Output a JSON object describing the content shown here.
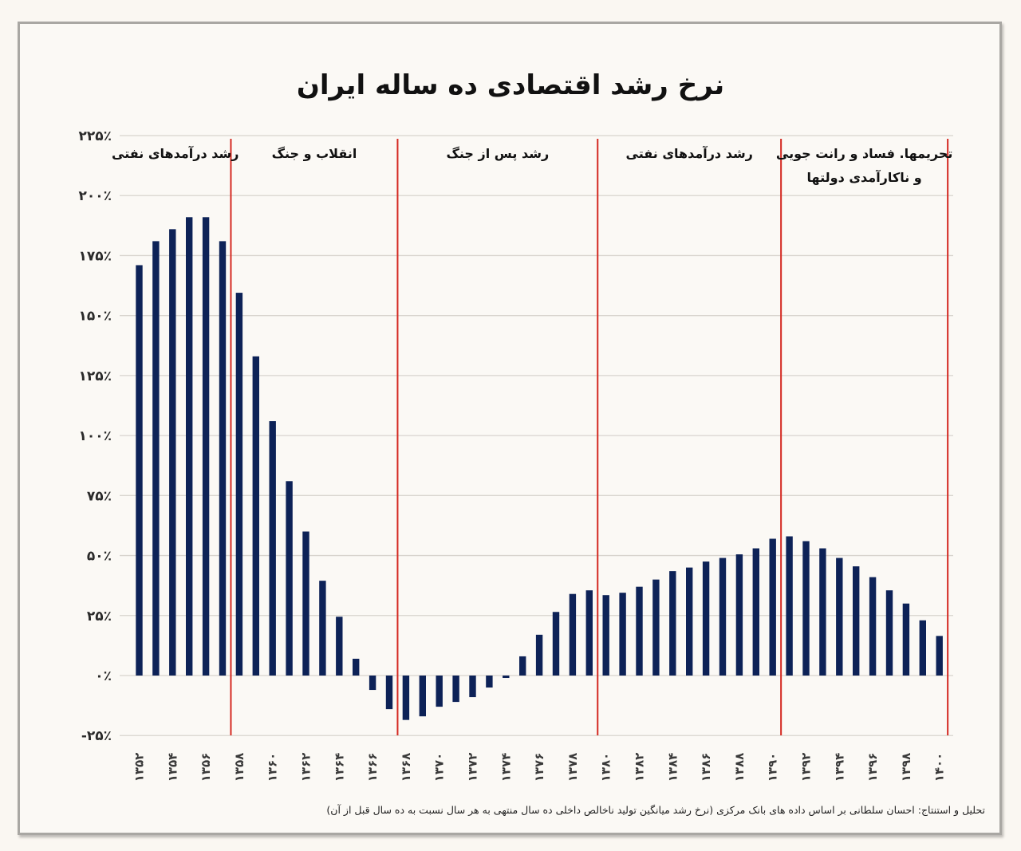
{
  "chart_data": {
    "type": "bar",
    "title": "نرخ رشد اقتصادی ده ساله ایران",
    "xlabel": "",
    "ylabel": "",
    "ylim": [
      -25,
      225
    ],
    "grid": true,
    "legend": "none",
    "colors": {
      "bar": "#0d2257",
      "divider": "#d42a22",
      "grid": "#d8d4ce"
    },
    "x": [
      1352,
      1353,
      1354,
      1355,
      1356,
      1357,
      1358,
      1359,
      1360,
      1361,
      1362,
      1363,
      1364,
      1365,
      1366,
      1367,
      1368,
      1369,
      1370,
      1371,
      1372,
      1373,
      1374,
      1375,
      1376,
      1377,
      1378,
      1379,
      1380,
      1381,
      1382,
      1383,
      1384,
      1385,
      1386,
      1387,
      1388,
      1389,
      1390,
      1391,
      1392,
      1393,
      1394,
      1395,
      1396,
      1397,
      1398,
      1399,
      1400
    ],
    "values": [
      171,
      181,
      186,
      191,
      191,
      181,
      159.5,
      133,
      106,
      81,
      60,
      39.5,
      24.5,
      7,
      -6,
      -14,
      -18.5,
      -17,
      -13,
      -11,
      -9,
      -5,
      -1,
      8,
      17,
      26.5,
      34,
      35.5,
      33.5,
      34.5,
      37,
      40,
      43.5,
      45,
      47.5,
      49,
      50.5,
      53,
      57,
      58,
      56,
      53,
      49,
      45.5,
      41,
      35.5,
      30,
      23,
      16.5
    ],
    "yticks": [
      {
        "value": 225,
        "label": "۲۲۵٪"
      },
      {
        "value": 200,
        "label": "۲۰۰٪"
      },
      {
        "value": 175,
        "label": "۱۷۵٪"
      },
      {
        "value": 150,
        "label": "۱۵۰٪"
      },
      {
        "value": 125,
        "label": "۱۲۵٪"
      },
      {
        "value": 100,
        "label": "۱۰۰٪"
      },
      {
        "value": 75,
        "label": "۷۵٪"
      },
      {
        "value": 50,
        "label": "۵۰٪"
      },
      {
        "value": 25,
        "label": "۲۵٪"
      },
      {
        "value": 0,
        "label": "۰٪"
      },
      {
        "value": -25,
        "label": "-۲۵٪"
      }
    ],
    "xticks": [
      {
        "value": 1352,
        "label": "۱۳۵۲"
      },
      {
        "value": 1354,
        "label": "۱۳۵۴"
      },
      {
        "value": 1356,
        "label": "۱۳۵۶"
      },
      {
        "value": 1358,
        "label": "۱۳۵۸"
      },
      {
        "value": 1360,
        "label": "۱۳۶۰"
      },
      {
        "value": 1362,
        "label": "۱۳۶۲"
      },
      {
        "value": 1364,
        "label": "۱۳۶۴"
      },
      {
        "value": 1366,
        "label": "۱۳۶۶"
      },
      {
        "value": 1368,
        "label": "۱۳۶۸"
      },
      {
        "value": 1370,
        "label": "۱۳۷۰"
      },
      {
        "value": 1372,
        "label": "۱۳۷۲"
      },
      {
        "value": 1374,
        "label": "۱۳۷۴"
      },
      {
        "value": 1376,
        "label": "۱۳۷۶"
      },
      {
        "value": 1378,
        "label": "۱۳۷۸"
      },
      {
        "value": 1380,
        "label": "۱۳۸۰"
      },
      {
        "value": 1382,
        "label": "۱۳۸۲"
      },
      {
        "value": 1384,
        "label": "۱۳۸۴"
      },
      {
        "value": 1386,
        "label": "۱۳۸۶"
      },
      {
        "value": 1388,
        "label": "۱۳۸۸"
      },
      {
        "value": 1390,
        "label": "۱۳۹۰"
      },
      {
        "value": 1392,
        "label": "۱۳۹۲"
      },
      {
        "value": 1394,
        "label": "۱۳۹۴"
      },
      {
        "value": 1396,
        "label": "۱۳۹۶"
      },
      {
        "value": 1398,
        "label": "۱۳۹۸"
      },
      {
        "value": 1400,
        "label": "۱۴۰۰"
      }
    ],
    "dividers": [
      1357.5,
      1367.5,
      1379.5,
      1390.5,
      1400.5
    ],
    "periods": [
      {
        "from": 1352,
        "to": 1357,
        "lines": [
          "رشد درآمدهای نفتی"
        ]
      },
      {
        "from": 1358,
        "to": 1367,
        "lines": [
          "انقلاب و جنگ"
        ]
      },
      {
        "from": 1368,
        "to": 1379,
        "lines": [
          "رشد پس از جنگ"
        ]
      },
      {
        "from": 1380,
        "to": 1390,
        "lines": [
          "رشد درآمدهای نفتی"
        ]
      },
      {
        "from": 1391,
        "to": 1400,
        "lines": [
          "تحریمها. فساد و رانت جویی",
          "و ناکارآمدی دولتها"
        ]
      }
    ],
    "footnote": "تحلیل و استنتاج: احسان سلطانی بر اساس داده های بانک مرکزی (نرخ رشد میانگین تولید ناخالص داخلی ده سال منتهی به هر سال نسبت به ده سال قبل از آن)"
  }
}
